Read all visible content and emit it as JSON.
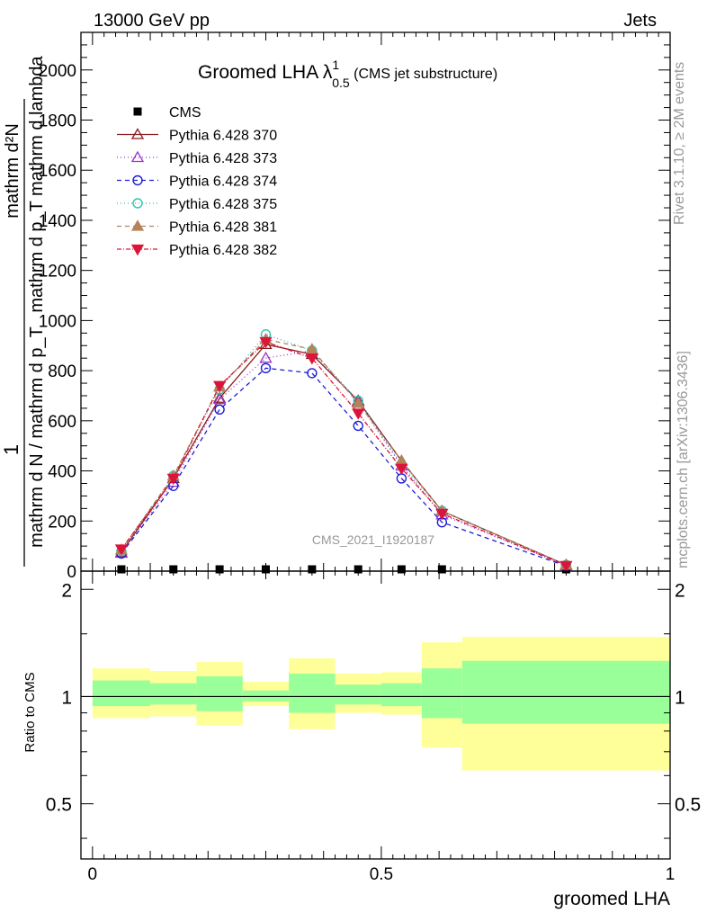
{
  "header": {
    "left": "13000 GeV pp",
    "right": "Jets"
  },
  "side": {
    "rivet": "Rivet 3.1.10, ≥ 2M events",
    "mcplots": "mcplots.cern.ch [arXiv:1306.3436]"
  },
  "chart_data": [
    {
      "type": "line",
      "title": "Groomed LHA λ",
      "title_sup": "1",
      "title_sub": "0.5",
      "title_note": "(CMS jet substructure)",
      "watermark": "CMS_2021_I1920187",
      "ylabel_num": "mathrm d²N",
      "ylabel_den": "mathrm d p_T mathrm d lambda",
      "ylabel_pre_num": "1",
      "ylabel_pre_den": "mathrm d N / mathrm d p_T",
      "ylim": [
        0,
        2150
      ],
      "yticks": [
        "0",
        "200",
        "400",
        "600",
        "800",
        "1000",
        "1200",
        "1400",
        "1600",
        "1800",
        "2000"
      ],
      "x": [
        0.05,
        0.14,
        0.22,
        0.3,
        0.38,
        0.46,
        0.535,
        0.605,
        0.82
      ],
      "series": [
        {
          "name": "CMS",
          "color": "#000000",
          "marker": "square",
          "dash": "",
          "values": [
            2,
            3,
            3,
            4,
            3,
            3,
            2,
            1,
            0
          ]
        },
        {
          "name": "Pythia 6.428 370",
          "color": "#8b1a1a",
          "marker": "triangle-open",
          "dash": "",
          "values": [
            75,
            370,
            690,
            905,
            865,
            680,
            440,
            240,
            25
          ]
        },
        {
          "name": "Pythia 6.428 373",
          "color": "#9932cc",
          "marker": "triangle-open",
          "dash": "1,3",
          "values": [
            72,
            355,
            685,
            850,
            880,
            675,
            420,
            225,
            22
          ]
        },
        {
          "name": "Pythia 6.428 374",
          "color": "#1f1fd6",
          "marker": "circle-open",
          "dash": "5,4",
          "values": [
            70,
            340,
            645,
            810,
            790,
            580,
            370,
            195,
            20
          ]
        },
        {
          "name": "Pythia 6.428 375",
          "color": "#2ec4b0",
          "marker": "circle-open",
          "dash": "1,3",
          "values": [
            80,
            380,
            725,
            945,
            880,
            680,
            425,
            240,
            25
          ]
        },
        {
          "name": "Pythia 6.428 381",
          "color": "#b5835a",
          "marker": "triangle-filled",
          "dash": "5,4",
          "values": [
            85,
            380,
            735,
            925,
            885,
            670,
            440,
            240,
            25
          ]
        },
        {
          "name": "Pythia 6.428 382",
          "color": "#dc143c",
          "marker": "triangle-down-filled",
          "dash": "5,2,1,2",
          "values": [
            88,
            370,
            740,
            915,
            850,
            630,
            410,
            230,
            22
          ]
        }
      ]
    },
    {
      "type": "area",
      "ylabel": "Ratio to CMS",
      "ylim": [
        0.35,
        2.25
      ],
      "yticks": [
        "0.5",
        "1",
        "2"
      ],
      "xlabel": "groomed LHA",
      "xlim": [
        -0.02,
        1.0
      ],
      "xticks": [
        "0",
        "0.5",
        "1"
      ],
      "bins": [
        {
          "lo": 0.0,
          "hi": 0.1,
          "yellow": [
            0.87,
            1.2
          ],
          "green": [
            0.94,
            1.11
          ]
        },
        {
          "lo": 0.1,
          "hi": 0.18,
          "yellow": [
            0.88,
            1.18
          ],
          "green": [
            0.95,
            1.09
          ]
        },
        {
          "lo": 0.18,
          "hi": 0.26,
          "yellow": [
            0.83,
            1.25
          ],
          "green": [
            0.91,
            1.14
          ]
        },
        {
          "lo": 0.26,
          "hi": 0.34,
          "yellow": [
            0.94,
            1.1
          ],
          "green": [
            0.97,
            1.04
          ]
        },
        {
          "lo": 0.34,
          "hi": 0.42,
          "yellow": [
            0.81,
            1.28
          ],
          "green": [
            0.9,
            1.16
          ]
        },
        {
          "lo": 0.42,
          "hi": 0.5,
          "yellow": [
            0.9,
            1.16
          ],
          "green": [
            0.95,
            1.08
          ]
        },
        {
          "lo": 0.5,
          "hi": 0.57,
          "yellow": [
            0.89,
            1.17
          ],
          "green": [
            0.94,
            1.09
          ]
        },
        {
          "lo": 0.57,
          "hi": 0.64,
          "yellow": [
            0.72,
            1.42
          ],
          "green": [
            0.87,
            1.2
          ]
        },
        {
          "lo": 0.64,
          "hi": 1.0,
          "yellow": [
            0.62,
            1.47
          ],
          "green": [
            0.84,
            1.26
          ]
        }
      ]
    }
  ]
}
